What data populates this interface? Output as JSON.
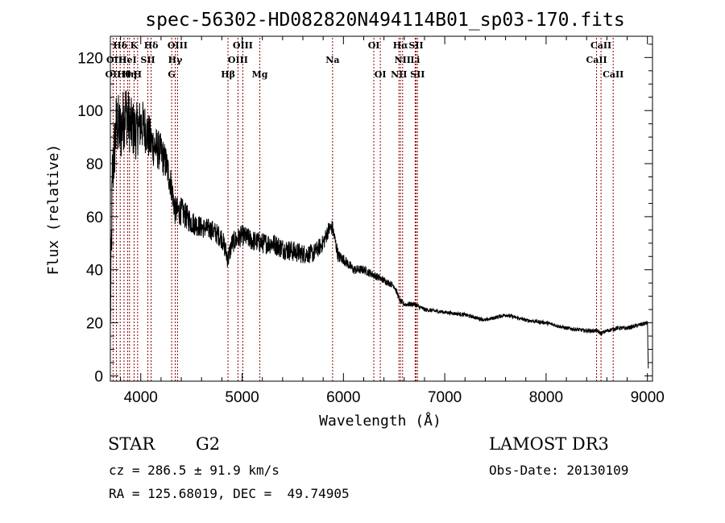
{
  "chart_data": {
    "type": "line",
    "title": "spec-56302-HD082820N494114B01_sp03-170.fits",
    "xlabel": "Wavelength (Å)",
    "ylabel": "Flux (relative)",
    "xlim": [
      3700,
      9050
    ],
    "ylim": [
      -2,
      128
    ],
    "xticks": [
      4000,
      5000,
      6000,
      7000,
      8000,
      9000
    ],
    "yticks": [
      0,
      20,
      40,
      60,
      80,
      100,
      120
    ],
    "colors": {
      "spectrum": "#000000",
      "lines": "#8b0000"
    },
    "continuum_anchors": {
      "x": [
        3700,
        3720,
        3760,
        3800,
        3850,
        3900,
        3950,
        4000,
        4050,
        4100,
        4150,
        4200,
        4250,
        4300,
        4340,
        4400,
        4500,
        4600,
        4700,
        4800,
        4861,
        4900,
        5000,
        5100,
        5200,
        5300,
        5400,
        5500,
        5600,
        5700,
        5800,
        5850,
        5890,
        5950,
        6000,
        6100,
        6200,
        6300,
        6400,
        6500,
        6563,
        6600,
        6700,
        6800,
        7000,
        7200,
        7400,
        7600,
        7800,
        8000,
        8200,
        8400,
        8500,
        8542,
        8600,
        8700,
        8800,
        8900,
        9000,
        9010
      ],
      "y": [
        20,
        75,
        95,
        92,
        100,
        94,
        92,
        95,
        93,
        88,
        86,
        84,
        80,
        72,
        62,
        62,
        58,
        56,
        55,
        52,
        44,
        50,
        53,
        51,
        50,
        50,
        48,
        47,
        46,
        46,
        50,
        55,
        56,
        45,
        44,
        40,
        40,
        38,
        36,
        34,
        28,
        27,
        27,
        25,
        24,
        23,
        21,
        23,
        21,
        20,
        18,
        17,
        17,
        16,
        17,
        18,
        18,
        19,
        20,
        0
      ]
    },
    "noise_anchors": {
      "x": [
        3700,
        4000,
        4300,
        4600,
        5000,
        5500,
        5900,
        6000,
        6300,
        6600,
        7000,
        8000,
        9000
      ],
      "amplitude": [
        14,
        10,
        6,
        4,
        4,
        4,
        3,
        2,
        1.5,
        1,
        0.7,
        0.7,
        0.8
      ]
    },
    "spectral_lines": [
      {
        "label": "OII",
        "x": 3727,
        "row": 2
      },
      {
        "label": "Hδ",
        "x": 3797,
        "row": 0
      },
      {
        "label": "OIII",
        "x": 3760,
        "row": 1
      },
      {
        "label": "Hθ",
        "x": 3835,
        "row": 2
      },
      {
        "label": "HeI",
        "x": 3870,
        "row": 1
      },
      {
        "label": "Hη",
        "x": 3889,
        "row": 2
      },
      {
        "label": "K",
        "x": 3934,
        "row": 0
      },
      {
        "label": "SII",
        "x": 4070,
        "row": 1
      },
      {
        "label": "H",
        "x": 3969,
        "row": 2
      },
      {
        "label": "Hδ",
        "x": 4102,
        "row": 0
      },
      {
        "label": "OIII",
        "x": 4363,
        "row": 0
      },
      {
        "label": "Hγ",
        "x": 4340,
        "row": 1
      },
      {
        "label": "G",
        "x": 4305,
        "row": 2
      },
      {
        "label": "OIII",
        "x": 5007,
        "row": 0
      },
      {
        "label": "OIII",
        "x": 4959,
        "row": 1
      },
      {
        "label": "Hβ",
        "x": 4861,
        "row": 2
      },
      {
        "label": "Mg",
        "x": 5175,
        "row": 2
      },
      {
        "label": "Na",
        "x": 5893,
        "row": 1
      },
      {
        "label": "OI",
        "x": 6300,
        "row": 0
      },
      {
        "label": "OI",
        "x": 6364,
        "row": 2
      },
      {
        "label": "Hα",
        "x": 6563,
        "row": 0
      },
      {
        "label": "NII",
        "x": 6584,
        "row": 1
      },
      {
        "label": "NII",
        "x": 6548,
        "row": 2
      },
      {
        "label": "SII",
        "x": 6717,
        "row": 0
      },
      {
        "label": "Li",
        "x": 6708,
        "row": 1
      },
      {
        "label": "SII",
        "x": 6731,
        "row": 2
      },
      {
        "label": "CaII",
        "x": 8542,
        "row": 0
      },
      {
        "label": "CaII",
        "x": 8498,
        "row": 1
      },
      {
        "label": "CaII",
        "x": 8662,
        "row": 2
      }
    ]
  },
  "info": {
    "class_label": "STAR",
    "subclass": "G2",
    "survey": "LAMOST DR3",
    "cz": "cz = 286.5 ± 91.9 km/s",
    "obs_date": "Obs-Date: 20130109",
    "coords": "RA = 125.68019, DEC =  49.74905"
  }
}
